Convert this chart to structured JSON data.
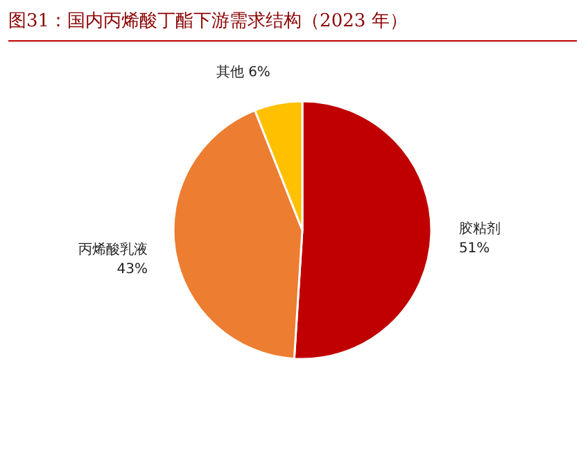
{
  "chart_data": {
    "type": "pie",
    "title": "图31：国内丙烯酸丁酯下游需求结构（2023 年）",
    "categories": [
      "胶粘剂",
      "丙烯酸乳液",
      "其他"
    ],
    "values": [
      51,
      43,
      6
    ],
    "colors": [
      "#c00000",
      "#ed7d31",
      "#ffc000"
    ],
    "value_labels": [
      "51%",
      "43%",
      "6%"
    ]
  }
}
